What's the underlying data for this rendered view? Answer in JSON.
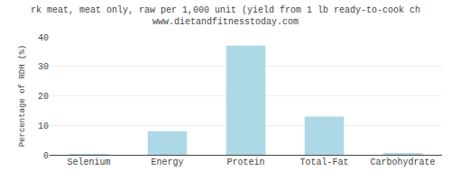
{
  "chart_data": {
    "type": "bar",
    "title": "rk meat, meat only, raw per 1,000 unit (yield from 1 lb ready-to-cook ch",
    "subtitle": "www.dietandfitnesstoday.com",
    "categories": [
      "Selenium",
      "Energy",
      "Protein",
      "Total-Fat",
      "Carbohydrate"
    ],
    "values": [
      0.3,
      8.0,
      37.0,
      13.0,
      0.5
    ],
    "color": "#add8e6",
    "ylabel": "Percentage of RDH (%)",
    "ylim": [
      0,
      40
    ],
    "yticks": [
      0,
      10,
      20,
      30,
      40
    ],
    "grid": true
  }
}
